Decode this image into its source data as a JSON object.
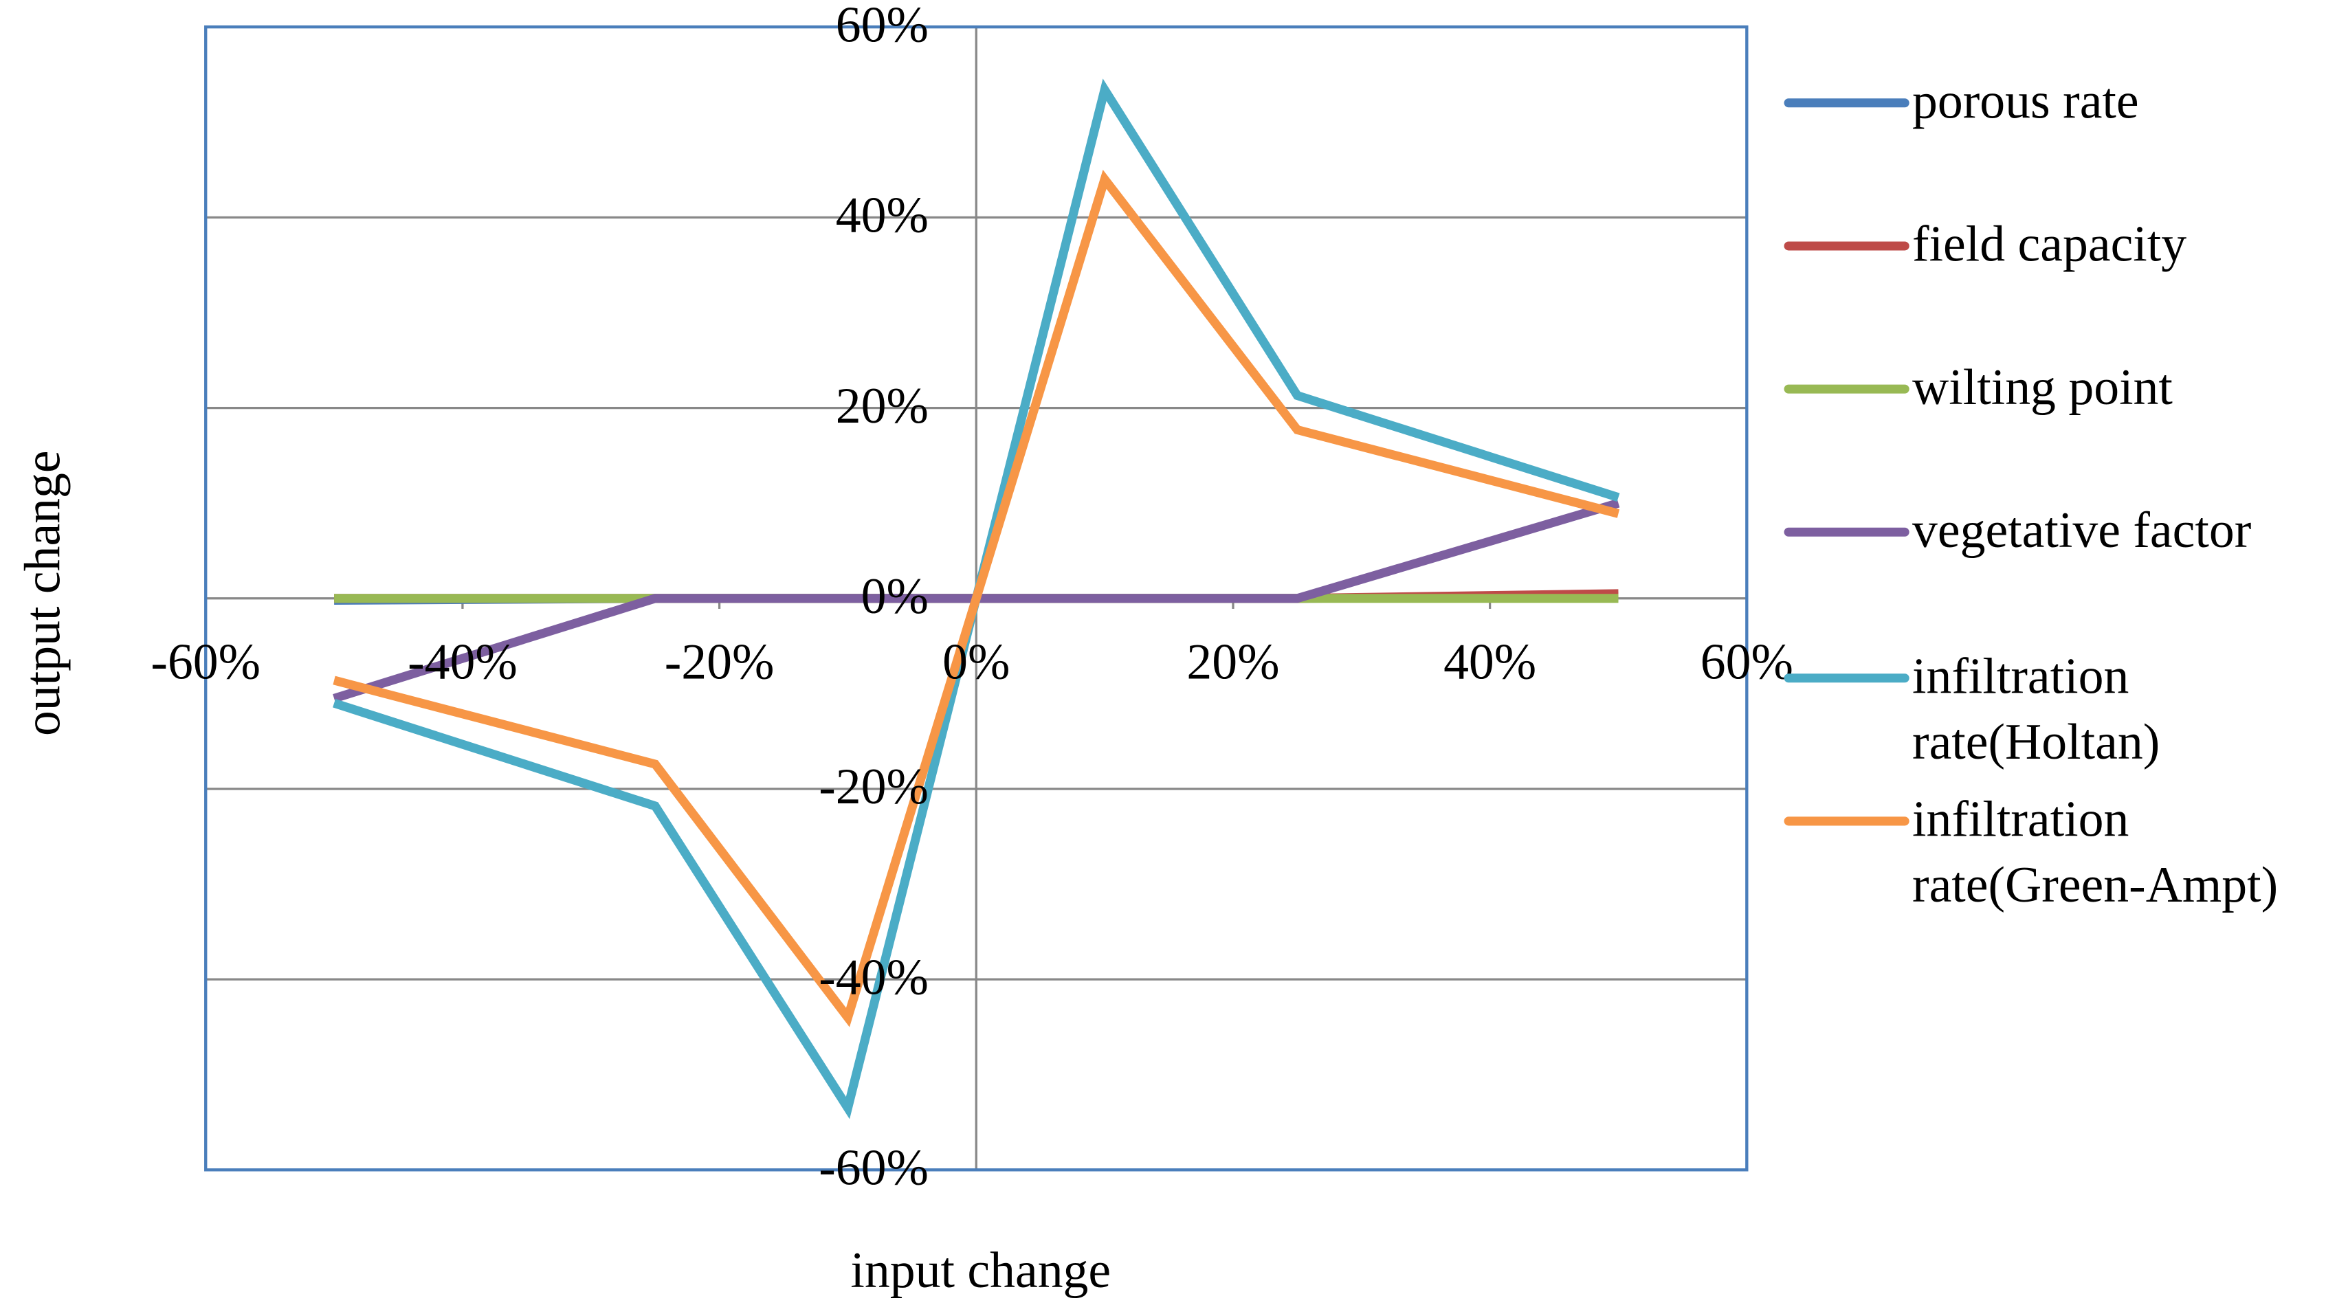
{
  "chart_data": {
    "type": "line",
    "x_label": "input change",
    "y_label": "output change",
    "x": [
      -50,
      -25,
      -10,
      0,
      10,
      25,
      50
    ],
    "series": [
      {
        "name": "porous rate",
        "color": "#4a7ebb",
        "values": [
          -0.2,
          0,
          0,
          0,
          0,
          0,
          0.2
        ]
      },
      {
        "name": "field capacity",
        "color": "#be4b48",
        "values": [
          0,
          0,
          0,
          0,
          0,
          0,
          0.5
        ]
      },
      {
        "name": "wilting point",
        "color": "#98b954",
        "values": [
          0,
          0,
          0,
          0,
          0,
          0,
          0
        ]
      },
      {
        "name": "vegetative factor",
        "color": "#7d5fa0",
        "values": [
          -10.5,
          0,
          0,
          0,
          0,
          0,
          10
        ]
      },
      {
        "name": "infiltration rate(Holtan)",
        "color": "#4bacc6",
        "values": [
          -11,
          -21.8,
          -53.5,
          0,
          53.4,
          21.3,
          10.6
        ]
      },
      {
        "name": "infiltration rate(Green-Ampt)",
        "color": "#f79646",
        "values": [
          -8.6,
          -17.4,
          -44,
          0,
          44,
          17.7,
          8.9
        ]
      }
    ],
    "xlim": [
      -60,
      60
    ],
    "xticks": [
      {
        "value": -60,
        "label": "-60%"
      },
      {
        "value": -40,
        "label": "-40%"
      },
      {
        "value": -20,
        "label": "-20%"
      },
      {
        "value": 0,
        "label": "0%"
      },
      {
        "value": 20,
        "label": "20%"
      },
      {
        "value": 40,
        "label": "40%"
      },
      {
        "value": 60,
        "label": "60%"
      }
    ],
    "ylim": [
      -60,
      60
    ],
    "yticks": [
      {
        "value": -60,
        "label": "-60%"
      },
      {
        "value": -40,
        "label": "-40%"
      },
      {
        "value": -20,
        "label": "-20%"
      },
      {
        "value": 0,
        "label": "0%"
      },
      {
        "value": 20,
        "label": "20%"
      },
      {
        "value": 40,
        "label": "40%"
      },
      {
        "value": 60,
        "label": "60%"
      }
    ],
    "grid": true,
    "legend": "right"
  }
}
